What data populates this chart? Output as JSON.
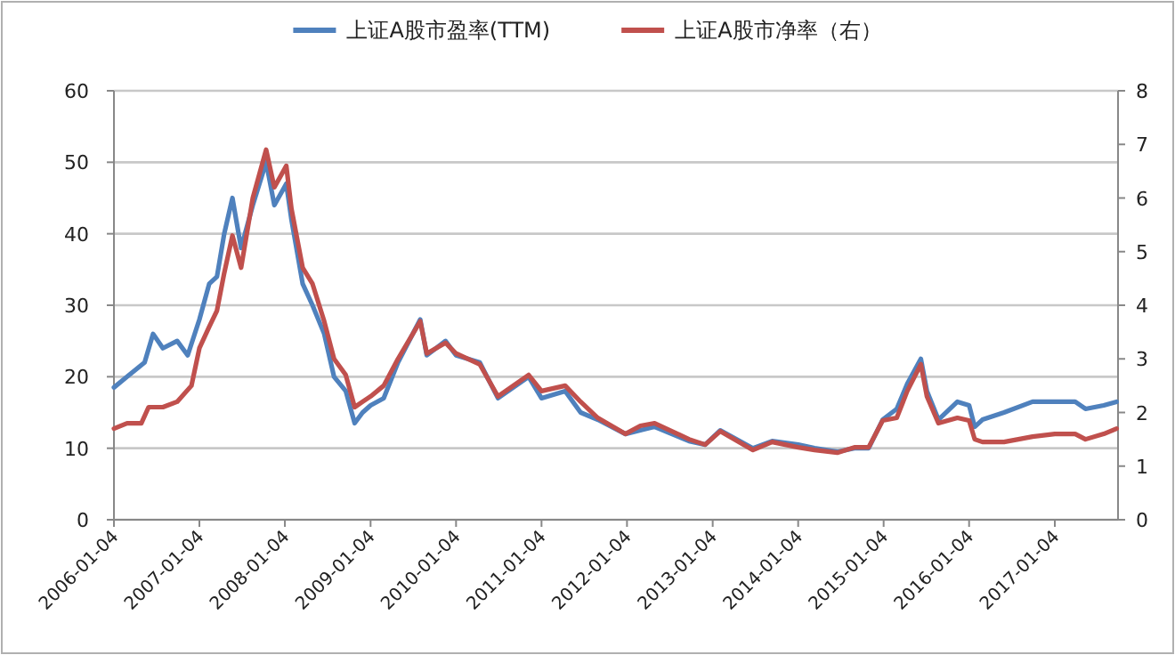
{
  "chart_data": {
    "type": "line",
    "grid": "y",
    "legend": "top",
    "line_style": "solid",
    "marker": "none",
    "xlim": [
      "2006-01-04",
      "2017-10-01"
    ],
    "xticks": [
      "2006-01-04",
      "2007-01-04",
      "2008-01-04",
      "2009-01-04",
      "2010-01-04",
      "2011-01-04",
      "2012-01-04",
      "2013-01-04",
      "2014-01-04",
      "2015-01-04",
      "2016-01-04",
      "2017-01-04"
    ],
    "ylim": [
      0,
      60
    ],
    "yticks": [
      0,
      10,
      20,
      30,
      40,
      50,
      60
    ],
    "y2lim": [
      0,
      8
    ],
    "y2ticks": [
      0,
      1,
      2,
      3,
      4,
      5,
      6,
      7,
      8
    ],
    "series": [
      {
        "name": "上证A股市盈率(TTM)",
        "color": "#4f81bd",
        "x": [
          "2006-01-04",
          "2006-03-01",
          "2006-05-15",
          "2006-06-20",
          "2006-08-01",
          "2006-10-01",
          "2006-11-15",
          "2007-01-04",
          "2007-02-15",
          "2007-03-20",
          "2007-04-20",
          "2007-05-25",
          "2007-07-01",
          "2007-08-20",
          "2007-10-16",
          "2007-11-20",
          "2008-01-10",
          "2008-02-01",
          "2008-03-20",
          "2008-05-01",
          "2008-06-20",
          "2008-08-01",
          "2008-09-20",
          "2008-10-28",
          "2008-12-01",
          "2009-01-04",
          "2009-03-01",
          "2009-05-01",
          "2009-08-04",
          "2009-09-01",
          "2009-11-20",
          "2010-01-04",
          "2010-04-15",
          "2010-07-02",
          "2010-11-10",
          "2011-01-04",
          "2011-04-15",
          "2011-06-20",
          "2011-09-01",
          "2011-12-28",
          "2012-03-01",
          "2012-05-01",
          "2012-09-25",
          "2012-12-03",
          "2013-02-05",
          "2013-06-25",
          "2013-09-15",
          "2014-01-04",
          "2014-03-15",
          "2014-06-20",
          "2014-09-01",
          "2014-11-01",
          "2014-12-31",
          "2015-03-01",
          "2015-04-15",
          "2015-06-12",
          "2015-07-08",
          "2015-08-26",
          "2015-11-15",
          "2016-01-04",
          "2016-01-28",
          "2016-03-01",
          "2016-06-01",
          "2016-10-01",
          "2017-01-04",
          "2017-04-01",
          "2017-05-15",
          "2017-08-01",
          "2017-09-25"
        ],
        "values": [
          18.5,
          20,
          22,
          26,
          24,
          25,
          23,
          28,
          33,
          34,
          40,
          45,
          38,
          44,
          50,
          44,
          47,
          42,
          33,
          30,
          26,
          20,
          18,
          13.5,
          15,
          16,
          17,
          22,
          28,
          23,
          25,
          23,
          22,
          17,
          20,
          17,
          18,
          15,
          14,
          12,
          12.5,
          13,
          11,
          10.5,
          12.5,
          10,
          11,
          10.5,
          10,
          9.5,
          10,
          10,
          14,
          15.5,
          19,
          22.5,
          18,
          14,
          16.5,
          16,
          13,
          14,
          15,
          16.5,
          16.5,
          16.5,
          15.5,
          16,
          16.5
        ]
      },
      {
        "name": "上证A股市净率（右）",
        "color": "#c0504d",
        "axis": "y2",
        "x": [
          "2006-01-04",
          "2006-03-01",
          "2006-05-01",
          "2006-06-01",
          "2006-08-01",
          "2006-10-01",
          "2006-12-01",
          "2007-01-04",
          "2007-02-15",
          "2007-03-20",
          "2007-04-20",
          "2007-05-25",
          "2007-07-01",
          "2007-08-20",
          "2007-10-16",
          "2007-11-20",
          "2008-01-10",
          "2008-02-01",
          "2008-03-20",
          "2008-05-01",
          "2008-06-20",
          "2008-08-01",
          "2008-09-20",
          "2008-10-28",
          "2008-12-01",
          "2009-01-04",
          "2009-03-01",
          "2009-05-01",
          "2009-08-04",
          "2009-09-01",
          "2009-11-20",
          "2010-01-04",
          "2010-04-15",
          "2010-07-02",
          "2010-11-10",
          "2011-01-04",
          "2011-04-15",
          "2011-06-20",
          "2011-09-01",
          "2011-12-28",
          "2012-03-01",
          "2012-05-01",
          "2012-09-25",
          "2012-12-03",
          "2013-02-05",
          "2013-06-25",
          "2013-09-15",
          "2014-01-04",
          "2014-03-15",
          "2014-06-20",
          "2014-09-01",
          "2014-11-01",
          "2014-12-31",
          "2015-03-01",
          "2015-04-15",
          "2015-06-12",
          "2015-07-08",
          "2015-08-26",
          "2015-11-15",
          "2016-01-04",
          "2016-01-28",
          "2016-03-01",
          "2016-06-01",
          "2016-10-01",
          "2017-01-04",
          "2017-04-01",
          "2017-05-15",
          "2017-08-01",
          "2017-09-25"
        ],
        "values": [
          1.7,
          1.8,
          1.8,
          2.1,
          2.1,
          2.2,
          2.5,
          3.2,
          3.6,
          3.9,
          4.6,
          5.3,
          4.7,
          6.0,
          6.9,
          6.2,
          6.6,
          5.8,
          4.7,
          4.4,
          3.7,
          3.0,
          2.7,
          2.1,
          2.2,
          2.3,
          2.5,
          3.0,
          3.7,
          3.1,
          3.3,
          3.1,
          2.9,
          2.3,
          2.7,
          2.4,
          2.5,
          2.2,
          1.9,
          1.6,
          1.75,
          1.8,
          1.5,
          1.4,
          1.65,
          1.3,
          1.45,
          1.35,
          1.3,
          1.25,
          1.35,
          1.35,
          1.85,
          1.9,
          2.4,
          2.9,
          2.3,
          1.8,
          1.9,
          1.85,
          1.5,
          1.45,
          1.45,
          1.55,
          1.6,
          1.6,
          1.5,
          1.6,
          1.7
        ]
      }
    ]
  }
}
